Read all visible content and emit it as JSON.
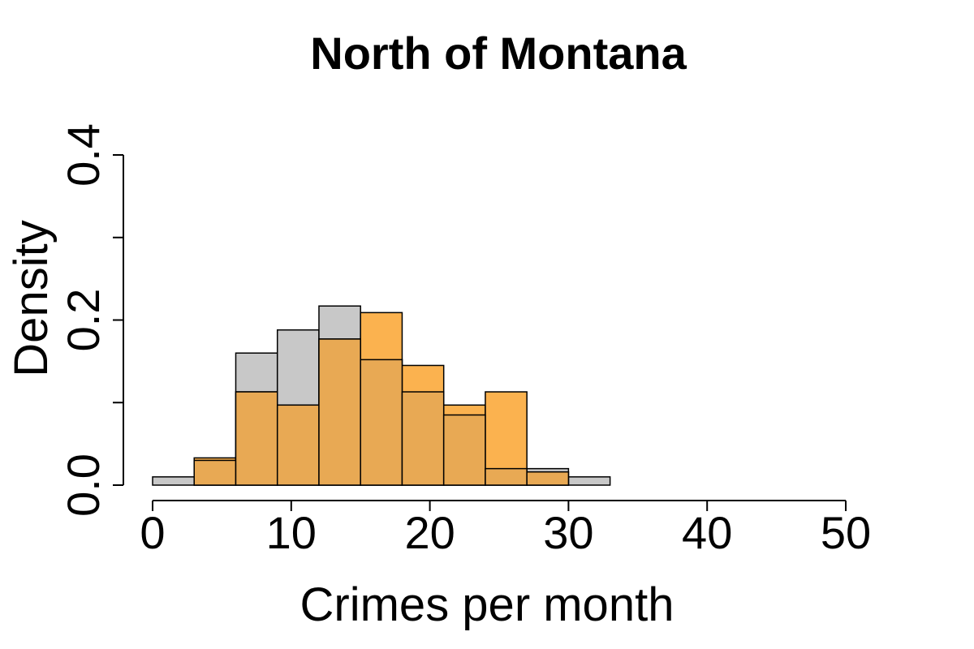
{
  "chart_data": {
    "type": "bar",
    "title": "North of Montana",
    "xlabel": "Crimes per month",
    "ylabel": "Density",
    "xlim": [
      0,
      50
    ],
    "ylim": [
      0,
      0.4
    ],
    "x_ticks": [
      "0",
      "10",
      "20",
      "30",
      "40",
      "50"
    ],
    "y_ticks": [
      "0.0",
      "0.2",
      "0.4"
    ],
    "bin_edges": [
      0,
      3,
      6,
      9,
      12,
      15,
      18,
      21,
      24,
      27,
      30,
      33
    ],
    "series": [
      {
        "color": "#c8c8c8",
        "values": [
          0.01,
          0.03,
          0.16,
          0.188,
          0.217,
          0.152,
          0.113,
          0.085,
          0.02,
          0.02,
          0.01
        ]
      },
      {
        "color": "#fbb24f",
        "values": [
          0.0,
          0.033,
          0.113,
          0.097,
          0.177,
          0.209,
          0.145,
          0.097,
          0.113,
          0.016,
          0.0
        ]
      }
    ],
    "overlap_color": "#e8a954",
    "grid": false,
    "legend": "none"
  }
}
